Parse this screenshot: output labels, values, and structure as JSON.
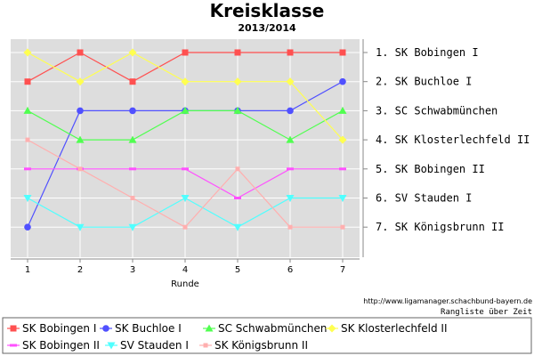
{
  "chart_data": {
    "type": "line",
    "title": "Kreisklasse",
    "subtitle": "2013/2014",
    "xlabel": "Runde",
    "x": [
      1,
      2,
      3,
      4,
      5,
      6,
      7
    ],
    "ylim": [
      7,
      1
    ],
    "rank_labels": [
      "1. SK Bobingen I",
      "2. SK Buchloe I",
      "3. SC Schwabmünchen",
      "4. SK Klosterlechfeld II",
      "5. SK Bobingen II",
      "6. SV Stauden I",
      "7. SK Königsbrunn II"
    ],
    "series": [
      {
        "name": "SK Bobingen I",
        "color": "#ff5050",
        "marker": "square",
        "values": [
          2,
          1,
          2,
          1,
          1,
          1,
          1
        ]
      },
      {
        "name": "SK Buchloe I",
        "color": "#5050ff",
        "marker": "circle",
        "values": [
          7,
          3,
          3,
          3,
          3,
          3,
          2
        ]
      },
      {
        "name": "SC Schwabmünchen",
        "color": "#50ff50",
        "marker": "triangle-up",
        "values": [
          3,
          4,
          4,
          3,
          3,
          4,
          3
        ]
      },
      {
        "name": "SK Klosterlechfeld II",
        "color": "#ffff50",
        "marker": "diamond",
        "values": [
          1,
          2,
          1,
          2,
          2,
          2,
          4
        ]
      },
      {
        "name": "SK Bobingen II",
        "color": "#ff50ff",
        "marker": "square-h",
        "values": [
          5,
          5,
          5,
          5,
          6,
          5,
          5
        ]
      },
      {
        "name": "SV Stauden I",
        "color": "#50ffff",
        "marker": "triangle-down",
        "values": [
          6,
          7,
          7,
          6,
          7,
          6,
          6
        ]
      },
      {
        "name": "SK Königsbrunn II",
        "color": "#ffafaf",
        "marker": "square-small",
        "values": [
          4,
          5,
          6,
          7,
          5,
          7,
          7
        ]
      }
    ],
    "grid": true,
    "legend": "bottom",
    "source": "http://www.ligamanager.schachbund-bayern.de",
    "caption": "Rangliste über Zeit",
    "plot_background": "#dddddd"
  }
}
